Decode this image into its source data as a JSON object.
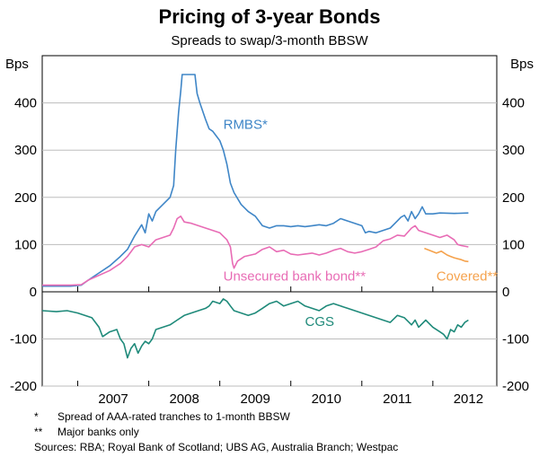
{
  "chart_data": {
    "type": "line",
    "title": "Pricing of 3-year Bonds",
    "subtitle": "Spreads to swap/3-month BBSW",
    "y_unit_left": "Bps",
    "y_unit_right": "Bps",
    "x_range": [
      2006.5,
      2012.9
    ],
    "x_ticks": [
      {
        "label": "2007",
        "value": 2007.0
      },
      {
        "label": "2008",
        "value": 2008.0
      },
      {
        "label": "2009",
        "value": 2009.0
      },
      {
        "label": "2010",
        "value": 2010.0
      },
      {
        "label": "2011",
        "value": 2011.0
      },
      {
        "label": "2012",
        "value": 2012.0
      }
    ],
    "top_panel": {
      "ylim": [
        0,
        500
      ],
      "ticks": [
        {
          "label": "0",
          "value": 0
        },
        {
          "label": "100",
          "value": 100
        },
        {
          "label": "200",
          "value": 200
        },
        {
          "label": "300",
          "value": 300
        },
        {
          "label": "400",
          "value": 400
        }
      ]
    },
    "bottom_panel": {
      "ylim": [
        -200,
        0
      ],
      "ticks": [
        {
          "label": "-100",
          "value": -100
        },
        {
          "label": "-200",
          "value": -200
        }
      ]
    },
    "series": [
      {
        "name": "RMBS*",
        "panel": "top",
        "color": "#3f86c7",
        "points": [
          [
            2006.5,
            12
          ],
          [
            2006.7,
            12
          ],
          [
            2006.9,
            12
          ],
          [
            2007.05,
            14
          ],
          [
            2007.15,
            25
          ],
          [
            2007.3,
            40
          ],
          [
            2007.45,
            55
          ],
          [
            2007.6,
            75
          ],
          [
            2007.7,
            90
          ],
          [
            2007.8,
            118
          ],
          [
            2007.9,
            142
          ],
          [
            2007.95,
            125
          ],
          [
            2008.0,
            165
          ],
          [
            2008.05,
            150
          ],
          [
            2008.1,
            170
          ],
          [
            2008.2,
            185
          ],
          [
            2008.3,
            200
          ],
          [
            2008.35,
            225
          ],
          [
            2008.38,
            300
          ],
          [
            2008.42,
            380
          ],
          [
            2008.45,
            425
          ],
          [
            2008.47,
            460
          ],
          [
            2008.58,
            460
          ],
          [
            2008.65,
            460
          ],
          [
            2008.68,
            420
          ],
          [
            2008.72,
            400
          ],
          [
            2008.8,
            365
          ],
          [
            2008.85,
            345
          ],
          [
            2008.9,
            340
          ],
          [
            2008.95,
            330
          ],
          [
            2009.0,
            320
          ],
          [
            2009.05,
            300
          ],
          [
            2009.1,
            270
          ],
          [
            2009.15,
            230
          ],
          [
            2009.2,
            210
          ],
          [
            2009.3,
            185
          ],
          [
            2009.4,
            170
          ],
          [
            2009.5,
            160
          ],
          [
            2009.6,
            140
          ],
          [
            2009.7,
            135
          ],
          [
            2009.8,
            140
          ],
          [
            2009.9,
            140
          ],
          [
            2010.0,
            138
          ],
          [
            2010.1,
            140
          ],
          [
            2010.2,
            138
          ],
          [
            2010.3,
            140
          ],
          [
            2010.4,
            142
          ],
          [
            2010.5,
            140
          ],
          [
            2010.6,
            145
          ],
          [
            2010.7,
            155
          ],
          [
            2010.8,
            150
          ],
          [
            2010.9,
            145
          ],
          [
            2011.0,
            140
          ],
          [
            2011.05,
            125
          ],
          [
            2011.1,
            128
          ],
          [
            2011.2,
            125
          ],
          [
            2011.3,
            130
          ],
          [
            2011.4,
            135
          ],
          [
            2011.5,
            150
          ],
          [
            2011.55,
            158
          ],
          [
            2011.6,
            162
          ],
          [
            2011.65,
            150
          ],
          [
            2011.7,
            170
          ],
          [
            2011.75,
            155
          ],
          [
            2011.8,
            165
          ],
          [
            2011.85,
            180
          ],
          [
            2011.9,
            165
          ],
          [
            2012.0,
            165
          ],
          [
            2012.1,
            167
          ],
          [
            2012.3,
            166
          ],
          [
            2012.5,
            167
          ]
        ]
      },
      {
        "name": "Unsecured bank bond**",
        "panel": "top",
        "color": "#e86cb5",
        "points": [
          [
            2006.5,
            14
          ],
          [
            2006.7,
            14
          ],
          [
            2006.9,
            14
          ],
          [
            2007.05,
            15
          ],
          [
            2007.15,
            25
          ],
          [
            2007.3,
            35
          ],
          [
            2007.45,
            45
          ],
          [
            2007.6,
            60
          ],
          [
            2007.7,
            75
          ],
          [
            2007.8,
            95
          ],
          [
            2007.9,
            100
          ],
          [
            2008.0,
            95
          ],
          [
            2008.1,
            110
          ],
          [
            2008.2,
            115
          ],
          [
            2008.3,
            120
          ],
          [
            2008.35,
            135
          ],
          [
            2008.4,
            155
          ],
          [
            2008.45,
            160
          ],
          [
            2008.5,
            148
          ],
          [
            2008.6,
            145
          ],
          [
            2008.7,
            140
          ],
          [
            2008.8,
            135
          ],
          [
            2008.9,
            130
          ],
          [
            2009.0,
            125
          ],
          [
            2009.1,
            110
          ],
          [
            2009.15,
            95
          ],
          [
            2009.18,
            60
          ],
          [
            2009.2,
            50
          ],
          [
            2009.25,
            65
          ],
          [
            2009.35,
            75
          ],
          [
            2009.5,
            80
          ],
          [
            2009.6,
            90
          ],
          [
            2009.7,
            95
          ],
          [
            2009.8,
            85
          ],
          [
            2009.9,
            88
          ],
          [
            2010.0,
            80
          ],
          [
            2010.1,
            78
          ],
          [
            2010.2,
            80
          ],
          [
            2010.3,
            82
          ],
          [
            2010.4,
            78
          ],
          [
            2010.5,
            82
          ],
          [
            2010.6,
            88
          ],
          [
            2010.7,
            92
          ],
          [
            2010.8,
            85
          ],
          [
            2010.9,
            82
          ],
          [
            2011.0,
            85
          ],
          [
            2011.1,
            90
          ],
          [
            2011.2,
            95
          ],
          [
            2011.3,
            108
          ],
          [
            2011.4,
            112
          ],
          [
            2011.5,
            120
          ],
          [
            2011.6,
            118
          ],
          [
            2011.7,
            135
          ],
          [
            2011.75,
            140
          ],
          [
            2011.8,
            130
          ],
          [
            2011.9,
            125
          ],
          [
            2012.0,
            120
          ],
          [
            2012.1,
            115
          ],
          [
            2012.2,
            120
          ],
          [
            2012.3,
            110
          ],
          [
            2012.35,
            100
          ],
          [
            2012.4,
            98
          ],
          [
            2012.5,
            95
          ]
        ]
      },
      {
        "name": "Covered**",
        "panel": "top",
        "color": "#f5a24c",
        "points": [
          [
            2011.88,
            92
          ],
          [
            2011.95,
            88
          ],
          [
            2012.05,
            82
          ],
          [
            2012.12,
            86
          ],
          [
            2012.2,
            78
          ],
          [
            2012.25,
            75
          ],
          [
            2012.3,
            72
          ],
          [
            2012.35,
            70
          ],
          [
            2012.4,
            68
          ],
          [
            2012.45,
            65
          ],
          [
            2012.5,
            64
          ]
        ]
      },
      {
        "name": "CGS",
        "panel": "bottom",
        "color": "#1f8a7a",
        "points": [
          [
            2006.5,
            -40
          ],
          [
            2006.7,
            -42
          ],
          [
            2006.85,
            -40
          ],
          [
            2007.0,
            -45
          ],
          [
            2007.1,
            -50
          ],
          [
            2007.2,
            -55
          ],
          [
            2007.3,
            -75
          ],
          [
            2007.35,
            -95
          ],
          [
            2007.45,
            -85
          ],
          [
            2007.55,
            -80
          ],
          [
            2007.6,
            -100
          ],
          [
            2007.65,
            -110
          ],
          [
            2007.7,
            -140
          ],
          [
            2007.75,
            -120
          ],
          [
            2007.8,
            -110
          ],
          [
            2007.85,
            -130
          ],
          [
            2007.9,
            -115
          ],
          [
            2007.95,
            -105
          ],
          [
            2008.0,
            -110
          ],
          [
            2008.05,
            -100
          ],
          [
            2008.1,
            -80
          ],
          [
            2008.2,
            -75
          ],
          [
            2008.3,
            -70
          ],
          [
            2008.4,
            -60
          ],
          [
            2008.5,
            -50
          ],
          [
            2008.6,
            -45
          ],
          [
            2008.7,
            -40
          ],
          [
            2008.8,
            -35
          ],
          [
            2008.85,
            -30
          ],
          [
            2008.9,
            -20
          ],
          [
            2009.0,
            -25
          ],
          [
            2009.05,
            -15
          ],
          [
            2009.1,
            -20
          ],
          [
            2009.15,
            -30
          ],
          [
            2009.2,
            -40
          ],
          [
            2009.3,
            -45
          ],
          [
            2009.4,
            -50
          ],
          [
            2009.5,
            -45
          ],
          [
            2009.6,
            -35
          ],
          [
            2009.7,
            -25
          ],
          [
            2009.8,
            -20
          ],
          [
            2009.9,
            -30
          ],
          [
            2010.0,
            -25
          ],
          [
            2010.1,
            -20
          ],
          [
            2010.2,
            -30
          ],
          [
            2010.3,
            -35
          ],
          [
            2010.4,
            -40
          ],
          [
            2010.5,
            -30
          ],
          [
            2010.6,
            -25
          ],
          [
            2010.7,
            -30
          ],
          [
            2010.8,
            -35
          ],
          [
            2010.9,
            -40
          ],
          [
            2011.0,
            -45
          ],
          [
            2011.1,
            -50
          ],
          [
            2011.2,
            -55
          ],
          [
            2011.3,
            -60
          ],
          [
            2011.4,
            -65
          ],
          [
            2011.5,
            -50
          ],
          [
            2011.6,
            -55
          ],
          [
            2011.7,
            -70
          ],
          [
            2011.75,
            -60
          ],
          [
            2011.8,
            -75
          ],
          [
            2011.9,
            -60
          ],
          [
            2012.0,
            -75
          ],
          [
            2012.1,
            -85
          ],
          [
            2012.15,
            -90
          ],
          [
            2012.2,
            -100
          ],
          [
            2012.25,
            -80
          ],
          [
            2012.3,
            -85
          ],
          [
            2012.35,
            -70
          ],
          [
            2012.4,
            -75
          ],
          [
            2012.45,
            -65
          ],
          [
            2012.5,
            -60
          ]
        ]
      }
    ],
    "annotations": [
      {
        "text": "RMBS*",
        "series": "RMBS*",
        "x": 2009.05,
        "y": 345
      },
      {
        "text": "Unsecured bank bond**",
        "series": "Unsecured bank bond**",
        "x": 2009.05,
        "y": 24
      },
      {
        "text": "Covered**",
        "series": "Covered**",
        "x": 2012.05,
        "y": 24
      },
      {
        "text": "CGS",
        "series": "CGS",
        "x": 2010.2,
        "y": -72
      }
    ]
  },
  "notes": [
    {
      "mark": "*",
      "text": "Spread of AAA-rated tranches to 1-month BBSW"
    },
    {
      "mark": "**",
      "text": "Major banks only"
    }
  ],
  "sources": "Sources: RBA; Royal Bank of Scotland; UBS AG, Australia Branch; Westpac"
}
